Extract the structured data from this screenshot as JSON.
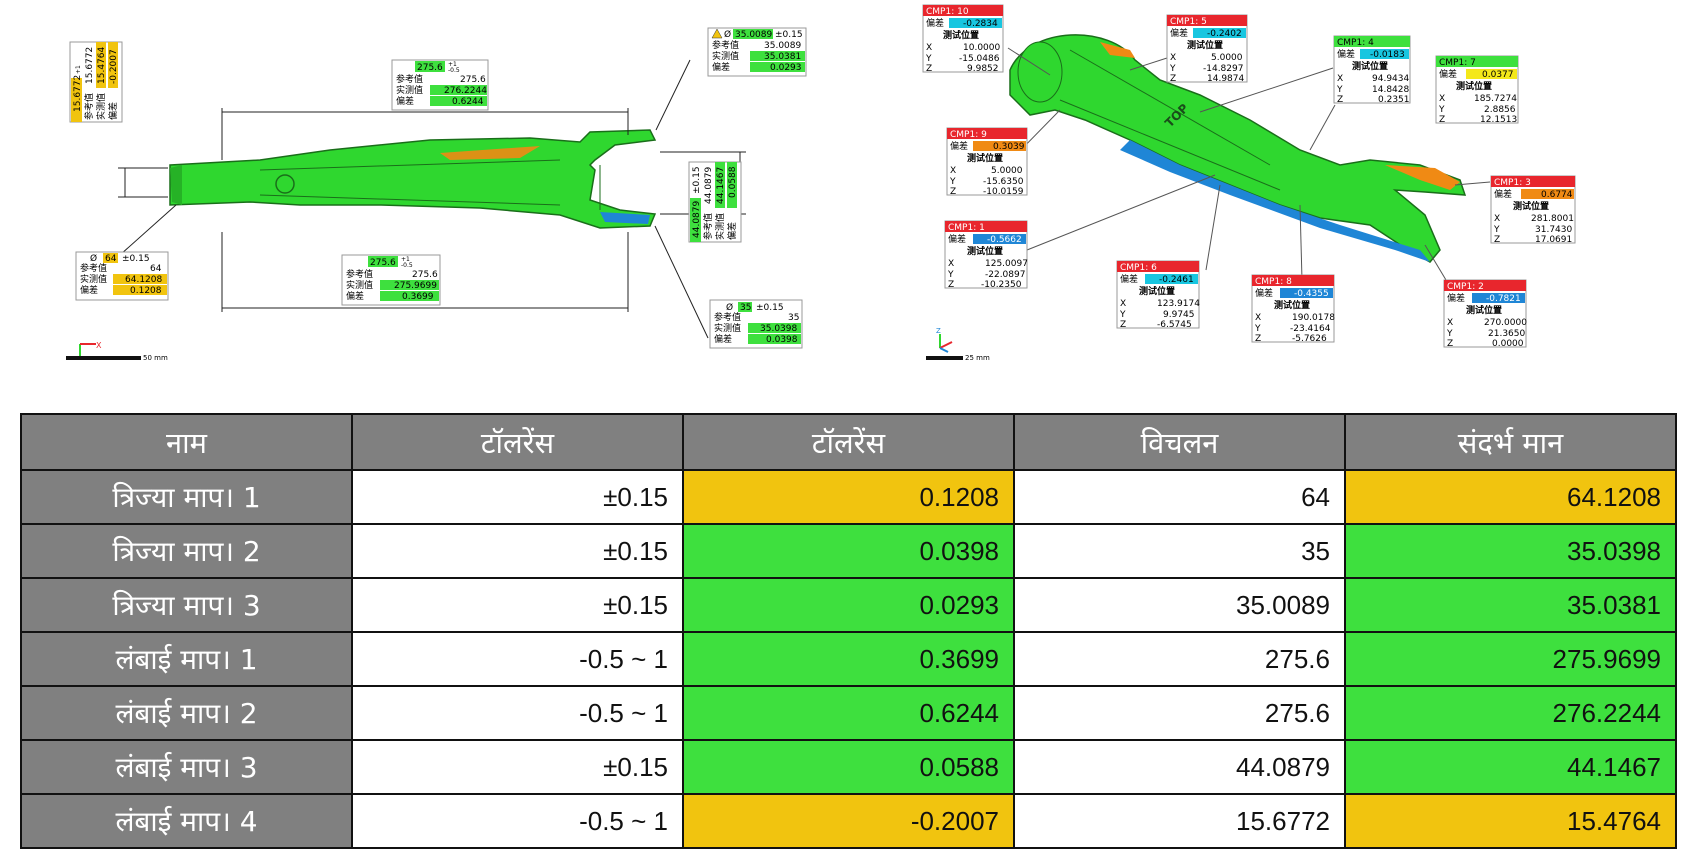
{
  "colors": {
    "part_green": "#2fd72f",
    "ok_green": "#3ee03e",
    "warn_yellow": "#f1c40f",
    "header_gray": "#808080",
    "cmp_red": "#e8262d",
    "dev_blue": "#1f86d6",
    "dev_cyan": "#18c6e0",
    "dev_orange": "#f08a14"
  },
  "left_view": {
    "scale_label": "50 mm",
    "ann_dia64": {
      "sym": "Ø",
      "nominal": "64",
      "tol": "±0.15",
      "r_ref_label": "参考值",
      "r_ref": "64",
      "r_meas_label": "实测值",
      "r_meas": "64.1208",
      "r_dev_label": "偏差",
      "r_dev": "0.1208"
    },
    "ann_dia35": {
      "sym": "Ø",
      "nominal": "35",
      "tol": "±0.15",
      "r_ref_label": "参考值",
      "r_ref": "35",
      "r_meas_label": "实测值",
      "r_meas": "35.0398",
      "r_dev_label": "偏差",
      "r_dev": "0.0398"
    },
    "ann_dia35b": {
      "sym": "Ø",
      "nominal": "35.0089",
      "tol": "±0.15",
      "r_ref_label": "参考值",
      "r_ref": "35.0089",
      "r_meas_label": "实测值",
      "r_meas": "35.0381",
      "r_dev_label": "偏差",
      "r_dev": "0.0293"
    },
    "ann_len_top": {
      "nominal": "275.6",
      "tol_up": "+1",
      "tol_dn": "-0.5",
      "r_ref_label": "参考值",
      "r_ref": "275.6",
      "r_meas_label": "实测值",
      "r_meas": "276.2244",
      "r_dev_label": "偏差",
      "r_dev": "0.6244"
    },
    "ann_len_bot": {
      "nominal": "275.6",
      "tol_up": "+1",
      "tol_dn": "-0.5",
      "r_ref_label": "参考值",
      "r_ref": "275.6",
      "r_meas_label": "实测值",
      "r_meas": "275.9699",
      "r_dev_label": "偏差",
      "r_dev": "0.3699"
    },
    "ann_vert_left": {
      "nominal": "15.6772",
      "tol_up": "+1",
      "tol_dn": "-0.5",
      "ref": "15.6772",
      "meas": "15.4764",
      "dev": "-0.2007",
      "l1": "参考值",
      "l2": "实测值",
      "l3": "偏差"
    },
    "ann_vert_right": {
      "nominal": "44.0879",
      "tol": "±0.15",
      "ref": "44.0879",
      "meas": "44.1467",
      "dev": "0.0588",
      "l1": "参考值",
      "l2": "实测值",
      "l3": "偏差"
    }
  },
  "right_view": {
    "scale_label": "25 mm",
    "part_text": "TOP",
    "dev_label": "偏差",
    "pos_label": "测试位置",
    "cmps": [
      {
        "title": "CMP1: 10",
        "dev": "-0.2834",
        "x": "10.0000",
        "y": "-15.0486",
        "z": "9.9852",
        "color": "#18c6e0"
      },
      {
        "title": "CMP1: 5",
        "dev": "-0.2402",
        "x": "5.0000",
        "y": "-14.8297",
        "z": "14.9874",
        "color": "#18c6e0"
      },
      {
        "title": "CMP1: 4",
        "dev": "-0.0183",
        "x": "94.9434",
        "y": "14.8428",
        "z": "0.2351",
        "color": "#18c6e0"
      },
      {
        "title": "CMP1: 7",
        "dev": "0.0377",
        "x": "185.7274",
        "y": "2.8856",
        "z": "12.1513",
        "color": "#f4e81a"
      },
      {
        "title": "CMP1: 9",
        "dev": "0.3039",
        "x": "5.0000",
        "y": "-15.6350",
        "z": "-10.0159",
        "color": "#f08a14"
      },
      {
        "title": "CMP1: 3",
        "dev": "0.6774",
        "x": "281.8001",
        "y": "31.7430",
        "z": "17.0691",
        "color": "#f08a14"
      },
      {
        "title": "CMP1: 1",
        "dev": "-0.5662",
        "x": "125.0097",
        "y": "-22.0897",
        "z": "-10.2350",
        "color": "#1f86d6"
      },
      {
        "title": "CMP1: 6",
        "dev": "-0.2461",
        "x": "123.9174",
        "y": "9.9745",
        "z": "-6.5745",
        "color": "#18c6e0"
      },
      {
        "title": "CMP1: 8",
        "dev": "-0.4355",
        "x": "190.0178",
        "y": "-23.4164",
        "z": "-5.7626",
        "color": "#1f86d6"
      },
      {
        "title": "CMP1: 2",
        "dev": "-0.7821",
        "x": "270.0000",
        "y": "21.3650",
        "z": "0.0000",
        "color": "#1f86d6"
      }
    ]
  },
  "table": {
    "headers": [
      "नाम",
      "टॉलरेंस",
      "टॉलरेंस",
      "विचलन",
      "संदर्भ मान"
    ],
    "rows": [
      {
        "name": "त्रिज्या माप। 1",
        "tol": "±0.15",
        "dev": "0.1208",
        "ref": "64",
        "meas": "64.1208",
        "status": "yellow"
      },
      {
        "name": "त्रिज्या माप। 2",
        "tol": "±0.15",
        "dev": "0.0398",
        "ref": "35",
        "meas": "35.0398",
        "status": "green"
      },
      {
        "name": "त्रिज्या माप। 3",
        "tol": "±0.15",
        "dev": "0.0293",
        "ref": "35.0089",
        "meas": "35.0381",
        "status": "green"
      },
      {
        "name": "लंबाई माप। 1",
        "tol": "-0.5 ~ 1",
        "dev": "0.3699",
        "ref": "275.6",
        "meas": "275.9699",
        "status": "green"
      },
      {
        "name": "लंबाई माप। 2",
        "tol": "-0.5 ~ 1",
        "dev": "0.6244",
        "ref": "275.6",
        "meas": "276.2244",
        "status": "green"
      },
      {
        "name": "लंबाई माप। 3",
        "tol": "±0.15",
        "dev": "0.0588",
        "ref": "44.0879",
        "meas": "44.1467",
        "status": "green"
      },
      {
        "name": "लंबाई माप। 4",
        "tol": "-0.5 ~ 1",
        "dev": "-0.2007",
        "ref": "15.6772",
        "meas": "15.4764",
        "status": "yellow"
      }
    ]
  }
}
